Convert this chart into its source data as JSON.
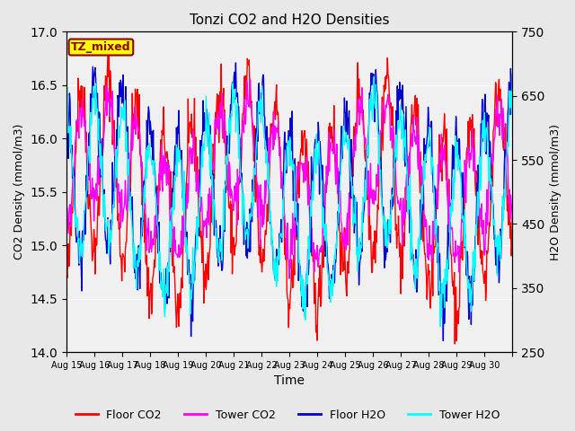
{
  "title": "Tonzi CO2 and H2O Densities",
  "xlabel": "Time",
  "ylabel_left": "CO2 Density (mmol/m3)",
  "ylabel_right": "H2O Density (mmol/m3)",
  "ylim_left": [
    14.0,
    17.0
  ],
  "ylim_right": [
    250,
    750
  ],
  "annotation_text": "TZ_mixed",
  "annotation_color": "#8B0000",
  "annotation_bg": "#FFFF00",
  "annotation_border": "#8B0000",
  "colors": {
    "floor_co2": "#FF0000",
    "tower_co2": "#FF00FF",
    "floor_h2o": "#0000CD",
    "tower_h2o": "#00FFFF"
  },
  "legend_labels": [
    "Floor CO2",
    "Tower CO2",
    "Floor H2O",
    "Tower H2O"
  ],
  "n_days": 16,
  "points_per_day": 48,
  "x_tick_positions": [
    0,
    1,
    2,
    3,
    4,
    5,
    6,
    7,
    8,
    9,
    10,
    11,
    12,
    13,
    14,
    15,
    16
  ],
  "x_tick_labels": [
    "Aug 15",
    "Aug 16",
    "Aug 17",
    "Aug 18",
    "Aug 19",
    "Aug 20",
    "Aug 21",
    "Aug 22",
    "Aug 23",
    "Aug 24",
    "Aug 25",
    "Aug 26",
    "Aug 27",
    "Aug 28",
    "Aug 29",
    "Aug 30",
    ""
  ],
  "background_color": "#E8E8E8",
  "plot_bg": "#F0F0F0"
}
